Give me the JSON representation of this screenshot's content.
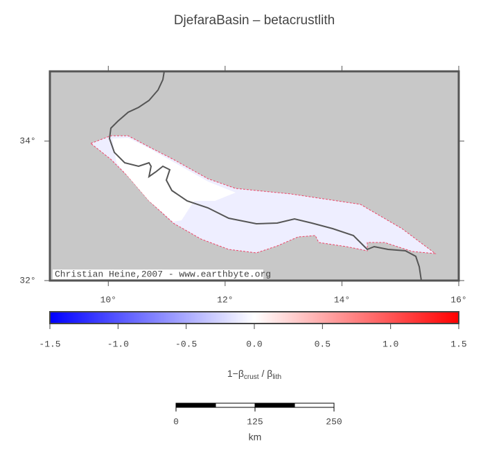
{
  "title": "DjefaraBasin – betacrustlith",
  "map": {
    "xlim": [
      9,
      16
    ],
    "ylim": [
      32,
      35
    ],
    "xticks": [
      {
        "value": 10,
        "label": "10°"
      },
      {
        "value": 12,
        "label": "12°"
      },
      {
        "value": 14,
        "label": "14°"
      },
      {
        "value": 16,
        "label": "16°"
      }
    ],
    "yticks": [
      {
        "value": 32,
        "label": "32°"
      },
      {
        "value": 34,
        "label": "34°"
      }
    ],
    "credit": "Christian Heine,2007 - www.earthbyte.org"
  },
  "colorbar": {
    "lim": [
      -1.5,
      1.5
    ],
    "ticks": [
      {
        "value": -1.5,
        "label": "-1.5"
      },
      {
        "value": -1,
        "label": "-1.0"
      },
      {
        "value": -0.5,
        "label": "-0.5"
      },
      {
        "value": 0,
        "label": "0.0"
      },
      {
        "value": 0.5,
        "label": "0.5"
      },
      {
        "value": 1,
        "label": "1.0"
      },
      {
        "value": 1.5,
        "label": "1.5"
      }
    ],
    "label": {
      "main": "1−β",
      "sub1": "crust",
      "mid": " / β",
      "sub2": "lith"
    }
  },
  "scalebar": {
    "lim": [
      0,
      250
    ],
    "ticks": [
      0,
      125,
      250
    ],
    "unit": "km"
  }
}
